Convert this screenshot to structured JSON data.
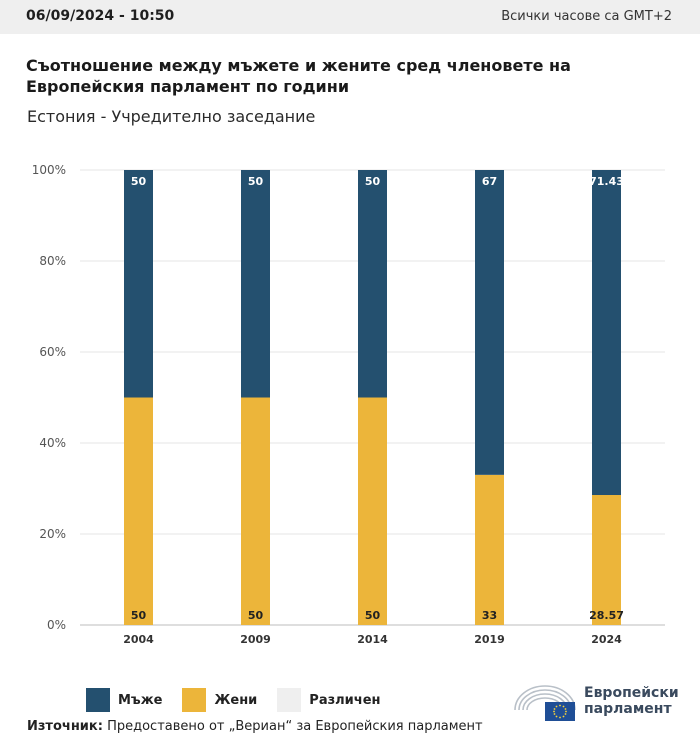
{
  "header": {
    "date": "06/09/2024 - 10:50",
    "timezone_note": "Всички часове са GMT+2"
  },
  "title": "Съотношение между мъжете и жените сред членовете на Европейския парламент по години",
  "subtitle": "Естония - Учредително заседание",
  "chart_data": {
    "type": "bar",
    "stacked": true,
    "categories": [
      "2004",
      "2009",
      "2014",
      "2019",
      "2024"
    ],
    "series": [
      {
        "name": "Жени",
        "color": "#ecb53a",
        "values": [
          50,
          50,
          50,
          33,
          28.57
        ]
      },
      {
        "name": "Мъже",
        "color": "#24506f",
        "values": [
          50,
          50,
          50,
          67,
          71.43
        ]
      },
      {
        "name": "Различен",
        "color": "#efefef",
        "values": [
          0,
          0,
          0,
          0,
          0
        ]
      }
    ],
    "ylim": [
      0,
      100
    ],
    "yticks": [
      0,
      20,
      40,
      60,
      80,
      100
    ],
    "ytick_labels": [
      "0%",
      "20%",
      "40%",
      "60%",
      "80%",
      "100%"
    ],
    "grid": true,
    "legend_position": "bottom-left"
  },
  "legend": [
    {
      "label": "Мъже",
      "color": "#24506f"
    },
    {
      "label": "Жени",
      "color": "#ecb53a"
    },
    {
      "label": "Различен",
      "color": "#efefef"
    }
  ],
  "source": {
    "label": "Източник:",
    "text": "Предоставено от „Вериан“ за Европейския парламент"
  },
  "logo": {
    "line1": "Европейски",
    "line2": "парламент"
  }
}
